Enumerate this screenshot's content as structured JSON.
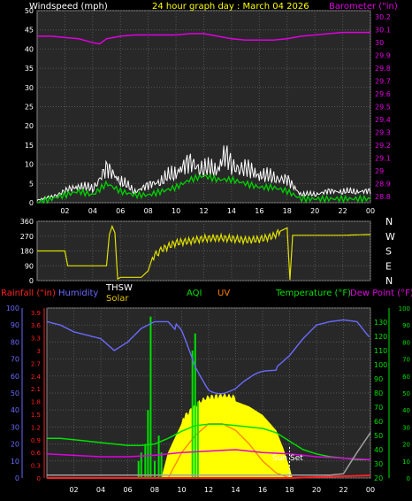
{
  "header": {
    "title_left": "Windspeed (mph)",
    "title_center": "24 hour graph day : March 04 2026",
    "title_right": "Barometer (\"in)"
  },
  "legend": {
    "rainfall": "Rainfall (\"in)",
    "humidity": "Humidity",
    "thsw": "THSW",
    "solar": "Solar",
    "aqi": "AQI",
    "uv": "UV",
    "temperature": "Temperature (°F)",
    "dewpoint": "Dew Point (°F)",
    "sunset": "Sun Set"
  },
  "colors": {
    "wind": "#ffffff",
    "wind_avg": "#00d000",
    "barometer": "#e000e0",
    "direction": "#e0e000",
    "humidity": "#6a6aff",
    "rain": "#ff2020",
    "solar": "#ffff00",
    "uv": "#ff8000",
    "temperature": "#00e000",
    "dewpoint": "#e000e0",
    "thsw": "#a0a0a0"
  },
  "chart_data": [
    {
      "type": "line",
      "name_left": "Windspeed (mph)",
      "name_right": "Barometer (\"in)",
      "x_ticks": [
        "02",
        "04",
        "06",
        "08",
        "10",
        "12",
        "14",
        "16",
        "18",
        "20",
        "22",
        "00"
      ],
      "y_left_ticks": [
        "50",
        "45",
        "40",
        "35",
        "30",
        "25",
        "20",
        "15",
        "10",
        "5",
        "0"
      ],
      "y_right_ticks": [
        "30.2",
        "30.1",
        "30",
        "29.9",
        "29.8",
        "29.7",
        "29.6",
        "29.5",
        "29.4",
        "29.3",
        "29.2",
        "29.1",
        "29",
        "28.9",
        "28.8"
      ],
      "ylim_left": [
        0,
        50
      ],
      "ylim_right": [
        28.75,
        30.25
      ],
      "barometer_x": [
        0,
        1,
        2,
        3,
        4,
        4.5,
        5,
        6,
        7,
        8,
        9,
        10,
        11,
        12,
        13,
        14,
        15,
        16,
        17,
        18,
        19,
        20,
        21,
        22,
        23,
        24
      ],
      "barometer_y": [
        30.05,
        30.05,
        30.04,
        30.03,
        30.0,
        29.99,
        30.03,
        30.05,
        30.06,
        30.06,
        30.06,
        30.06,
        30.07,
        30.07,
        30.05,
        30.03,
        30.02,
        30.02,
        30.02,
        30.03,
        30.05,
        30.06,
        30.07,
        30.08,
        30.08,
        30.08
      ],
      "wind_gust_x": [
        0,
        1,
        2,
        3,
        4,
        5,
        6,
        7,
        8,
        9,
        10,
        11,
        12,
        13,
        13.5,
        14,
        15,
        16,
        17,
        18,
        19,
        20,
        21,
        22,
        23,
        24
      ],
      "wind_gust_y": [
        1,
        2,
        4,
        6,
        5,
        12,
        8,
        4,
        6,
        8,
        11,
        14,
        12,
        12,
        17,
        13,
        12,
        10,
        9,
        8,
        3,
        3,
        4,
        4,
        4,
        4
      ],
      "wind_avg_x": [
        0,
        1,
        2,
        3,
        4,
        5,
        6,
        7,
        8,
        9,
        10,
        11,
        12,
        13,
        14,
        15,
        16,
        17,
        18,
        19,
        20,
        21,
        22,
        23,
        24
      ],
      "wind_avg_y": [
        0,
        1,
        2,
        3,
        2,
        5,
        3,
        2,
        2,
        3,
        4,
        6,
        7,
        6,
        6,
        5,
        4,
        4,
        3,
        1,
        1,
        1,
        1,
        1,
        1
      ]
    },
    {
      "type": "line",
      "name": "Wind Direction",
      "y_ticks": [
        "360",
        "270",
        "180",
        "90",
        "0"
      ],
      "y_compass": [
        "N",
        "W",
        "S",
        "E",
        "N"
      ],
      "ylim": [
        0,
        360
      ],
      "x": [
        0,
        2,
        2.2,
        5,
        5.2,
        5.4,
        5.6,
        5.8,
        6,
        7.5,
        8,
        8.3,
        9,
        10,
        11,
        12,
        13,
        14,
        15,
        16,
        17,
        17.5,
        18,
        18.2,
        18.4,
        19,
        20,
        22,
        24
      ],
      "y": [
        180,
        180,
        90,
        90,
        280,
        330,
        290,
        10,
        20,
        20,
        60,
        140,
        190,
        230,
        240,
        255,
        260,
        255,
        245,
        250,
        270,
        300,
        320,
        5,
        275,
        275,
        275,
        275,
        280
      ]
    },
    {
      "type": "line",
      "name_left": "Humidity",
      "x_ticks": [
        "02",
        "04",
        "06",
        "08",
        "10",
        "12",
        "14",
        "16",
        "18",
        "20",
        "22",
        "00"
      ],
      "y_left_ticks": [
        "100",
        "90",
        "80",
        "70",
        "60",
        "50",
        "40",
        "30",
        "20",
        "10",
        "0"
      ],
      "y_rain_ticks": [
        "3.9",
        "3.6",
        "3.3",
        "3",
        "2.7",
        "2.4",
        "2.1",
        "1.8",
        "1.5",
        "1.2",
        "0.9",
        "0.6",
        "0.3",
        "0"
      ],
      "y_temp_ticks": [
        "130",
        "120",
        "110",
        "100",
        "90",
        "80",
        "70",
        "60",
        "50",
        "40",
        "30",
        "20"
      ],
      "y_aqi_ticks": [
        "100",
        "90",
        "80",
        "70",
        "60",
        "50",
        "40",
        "30",
        "20",
        "10",
        "0"
      ],
      "ylim_left": [
        0,
        100
      ],
      "ylim_temp": [
        20,
        140
      ],
      "humidity_x": [
        0,
        1,
        2,
        3,
        4,
        5,
        6,
        7,
        8,
        9,
        10,
        11,
        12,
        13,
        14,
        15,
        16,
        17,
        18,
        19,
        20,
        21,
        22,
        23,
        24
      ],
      "humidity_y": [
        92,
        90,
        86,
        84,
        82,
        75,
        80,
        88,
        92,
        92,
        83,
        65,
        55,
        53,
        52,
        55,
        60,
        65,
        72,
        82,
        90,
        92,
        93,
        92,
        82
      ],
      "temperature_x": [
        0,
        1,
        2,
        3,
        4,
        5,
        6,
        7,
        8,
        9,
        10,
        11,
        12,
        13,
        14,
        15,
        16,
        17,
        18,
        19,
        20,
        21,
        22,
        23,
        24
      ],
      "temperature_y": [
        48,
        48,
        47,
        46,
        45,
        44,
        43,
        43,
        44,
        48,
        53,
        57,
        58,
        58,
        57,
        56,
        55,
        52,
        46,
        40,
        37,
        35,
        34,
        33,
        33
      ],
      "dewpoint_x": [
        0,
        2,
        4,
        6,
        8,
        10,
        12,
        14,
        16,
        18,
        20,
        22,
        24
      ],
      "dewpoint_y": [
        37,
        36,
        35,
        35,
        36,
        38,
        39,
        40,
        38,
        37,
        35,
        34,
        33
      ],
      "thsw_x": [
        0,
        12,
        18,
        21,
        22,
        23,
        24
      ],
      "thsw_y": [
        22,
        22,
        22,
        22,
        23,
        38,
        52
      ],
      "solar_x": [
        8.5,
        9,
        10,
        11,
        11.5,
        12,
        13,
        14,
        15,
        16,
        17,
        17.5,
        18,
        18.2
      ],
      "solar_y": [
        0,
        15,
        32,
        40,
        43,
        45,
        46,
        45,
        42,
        37,
        28,
        18,
        6,
        0
      ],
      "uv_x": [
        9,
        10,
        11,
        12,
        13,
        14,
        15,
        16,
        17,
        18
      ],
      "uv_y": [
        0,
        15,
        25,
        32,
        32,
        28,
        20,
        10,
        3,
        0
      ],
      "rain_x": [
        0,
        18,
        24
      ],
      "rain_y": [
        0,
        0,
        0.06
      ],
      "aqi_spikes_x": [
        6.8,
        7.0,
        7.3,
        7.5,
        7.7,
        8.0,
        8.3,
        8.5,
        10.8,
        11.0,
        11.2
      ],
      "aqi_spikes_y": [
        10,
        15,
        20,
        40,
        95,
        10,
        25,
        15,
        75,
        85,
        45
      ]
    }
  ]
}
